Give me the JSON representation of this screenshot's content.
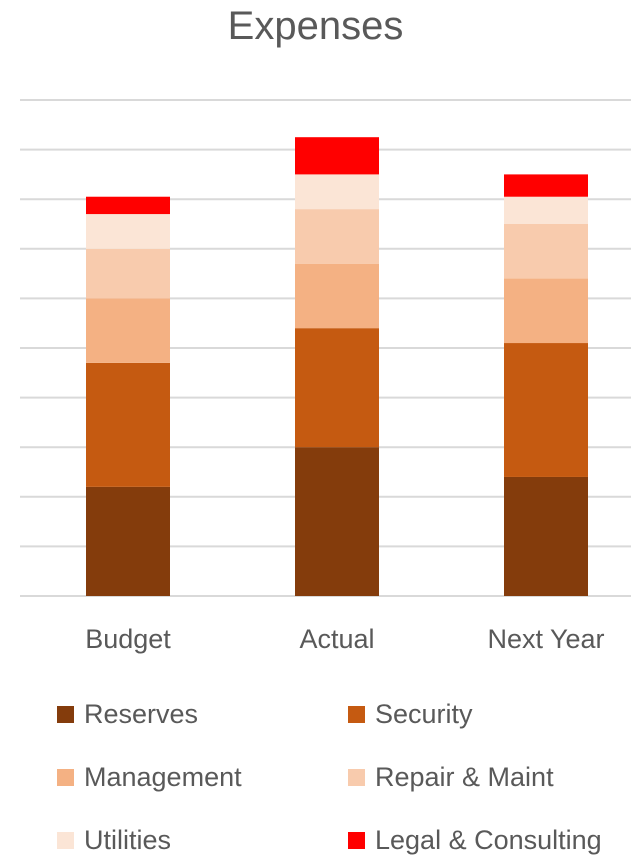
{
  "chart_data": {
    "type": "bar",
    "stacked": true,
    "title": "Expenses",
    "categories": [
      "Budget",
      "Actual",
      "Next Year"
    ],
    "ylim": [
      0,
      100
    ],
    "grid": true,
    "legend_position": "bottom",
    "series": [
      {
        "name": "Reserves",
        "color": "#843C0C",
        "values": [
          22,
          30,
          24
        ]
      },
      {
        "name": "Security",
        "color": "#C55A11",
        "values": [
          25,
          24,
          27
        ]
      },
      {
        "name": "Management",
        "color": "#F4B183",
        "values": [
          13,
          13,
          13
        ]
      },
      {
        "name": "Repair & Maint",
        "color": "#F8CBAD",
        "values": [
          10,
          11,
          11
        ]
      },
      {
        "name": "Utilities",
        "color": "#FBE5D6",
        "values": [
          7,
          7,
          5.5
        ]
      },
      {
        "name": "Legal & Consulting",
        "color": "#FF0000",
        "values": [
          3.5,
          7.5,
          4.5
        ]
      }
    ]
  }
}
